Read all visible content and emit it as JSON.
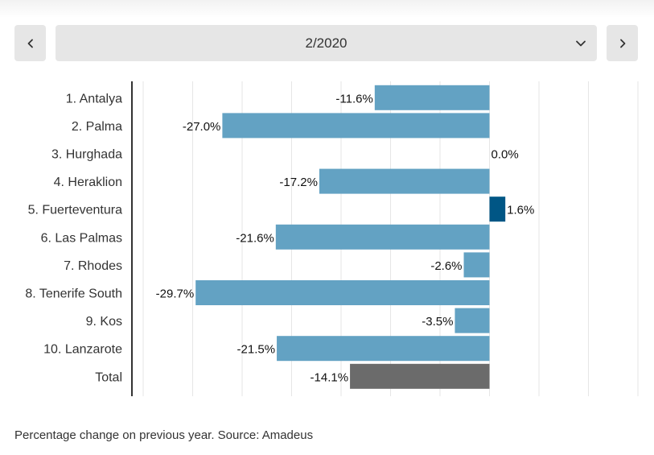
{
  "controls": {
    "period": "2/2020",
    "prev_icon": "chevron-left-icon",
    "next_icon": "chevron-right-icon",
    "dropdown_icon": "chevron-down-icon"
  },
  "colors": {
    "negative": "#63a2c3",
    "positive": "#005685",
    "total": "#6b6b6b",
    "grid": "#e6e6e6",
    "axis": "#333333"
  },
  "chart_data": {
    "type": "bar",
    "orientation": "horizontal",
    "categories": [
      "1. Antalya",
      "2. Palma",
      "3. Hurghada",
      "4. Heraklion",
      "5. Fuerteventura",
      "6. Las Palmas",
      "7. Rhodes",
      "8. Tenerife South",
      "9. Kos",
      "10. Lanzarote",
      "Total"
    ],
    "values": [
      -11.6,
      -27.0,
      0.0,
      -17.2,
      1.6,
      -21.6,
      -2.6,
      -29.7,
      -3.5,
      -21.5,
      -14.1
    ],
    "value_labels": [
      "-11.6%",
      "-27.0%",
      "0.0%",
      "-17.2%",
      "1.6%",
      "-21.6%",
      "-2.6%",
      "-29.7%",
      "-3.5%",
      "-21.5%",
      "-14.1%"
    ],
    "xlim": [
      -35,
      15
    ],
    "grid": true,
    "title": "",
    "xlabel": "",
    "ylabel": ""
  },
  "footnote": "Percentage change on previous year. Source: Amadeus"
}
